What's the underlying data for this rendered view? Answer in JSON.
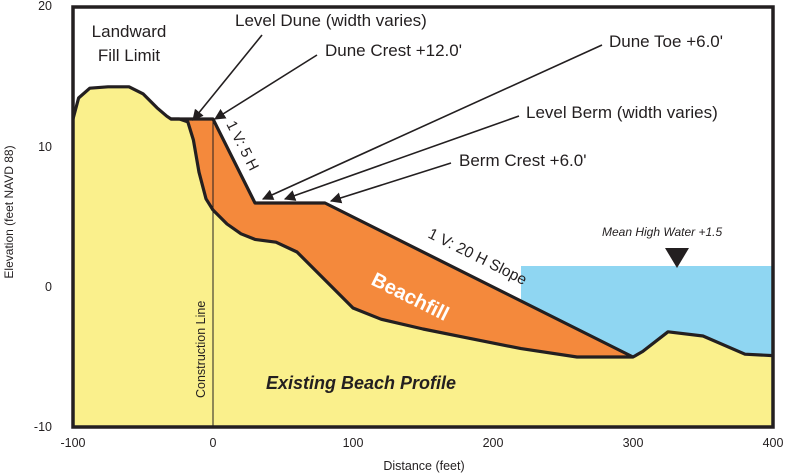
{
  "colors": {
    "existing_profile": "#FAF08C",
    "beachfill": "#F4893C",
    "water": "#8FD6F2",
    "outline": "#231F20",
    "background": "#FFFFFF"
  },
  "axes": {
    "xlabel": "Distance (feet)",
    "ylabel": "Elevation (feet NAVD 88)",
    "x_ticks": [
      "-100",
      "0",
      "100",
      "200",
      "300",
      "400"
    ],
    "y_ticks": [
      "20",
      "10",
      "0",
      "-10"
    ]
  },
  "labels": {
    "landward_fill_limit_line1": "Landward",
    "landward_fill_limit_line2": "Fill Limit",
    "level_dune": "Level Dune (width varies)",
    "dune_crest": "Dune Crest +12.0'",
    "dune_toe": "Dune Toe +6.0'",
    "level_berm": "Level Berm (width varies)",
    "berm_crest": "Berm Crest +6.0'",
    "dune_slope": "1 V: 5 H",
    "foreshore_slope": "1 V: 20 H Slope",
    "beachfill": "Beachfill",
    "mean_high_water": "Mean High Water +1.5",
    "construction_line": "Construction Line",
    "existing_beach_profile": "Existing Beach Profile"
  },
  "chart_data": {
    "type": "area",
    "title": "",
    "xlabel": "Distance (feet)",
    "ylabel": "Elevation (feet NAVD 88)",
    "xlim": [
      -100,
      400
    ],
    "ylim": [
      -10,
      20
    ],
    "existing_profile": {
      "x": [
        -100,
        -96,
        -88,
        -75,
        -60,
        -50,
        -40,
        -33,
        -30,
        -24,
        -18,
        -14,
        -10,
        -5,
        0,
        10,
        20,
        30,
        45,
        60,
        80,
        100,
        120,
        150,
        180,
        220,
        260,
        300,
        307,
        325,
        350,
        380,
        400
      ],
      "y": [
        12,
        13.5,
        14.2,
        14.3,
        14.3,
        13.8,
        12.8,
        12.2,
        12,
        12,
        11.8,
        10.5,
        8.2,
        6.3,
        5.5,
        4.5,
        3.8,
        3.4,
        3.2,
        2.5,
        0.5,
        -1.5,
        -2.3,
        -3,
        -3.6,
        -4.4,
        -5,
        -5,
        -4.6,
        -3.2,
        -3.5,
        -4.8,
        -4.9
      ]
    },
    "design_profile": {
      "x": [
        -30,
        -24,
        0,
        30,
        80,
        300
      ],
      "y": [
        12,
        12,
        12,
        6,
        6,
        -5
      ]
    },
    "mean_high_water": {
      "elevation": 1.5,
      "x_start": 220,
      "x_end": 400
    },
    "construction_line_x": 0,
    "annotations": [
      {
        "text": "Dune Crest +12.0'",
        "x": 0,
        "y": 12
      },
      {
        "text": "Dune Toe +6.0'",
        "x": 30,
        "y": 6
      },
      {
        "text": "Berm Crest +6.0'",
        "x": 80,
        "y": 6
      },
      {
        "text": "1 V: 5 H",
        "slope": "0 to 30 ft"
      },
      {
        "text": "1 V: 20 H Slope",
        "slope": "80 to 300 ft"
      }
    ]
  }
}
